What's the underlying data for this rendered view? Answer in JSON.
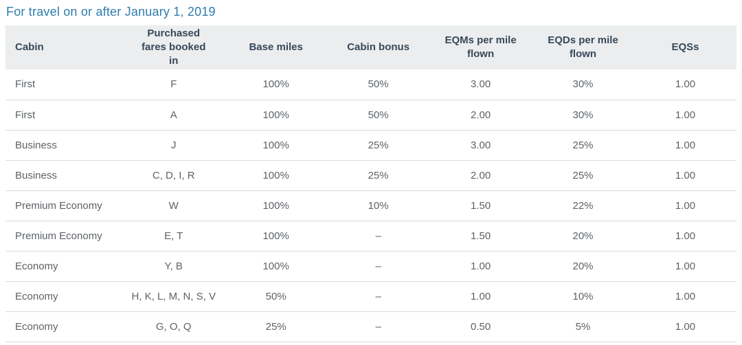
{
  "page": {
    "title": "For travel on or after January 1, 2019"
  },
  "colors": {
    "title_blue": "#2f7dad",
    "header_bg": "#ecedee",
    "header_text": "#36495a",
    "body_text": "#5d6267",
    "row_divider": "#d9dbdc"
  },
  "table": {
    "headers": [
      "Cabin",
      "Purchased fares booked in",
      "Base miles",
      "Cabin bonus",
      "EQMs per mile flown",
      "EQDs per mile flown",
      "EQSs"
    ],
    "rows": [
      [
        "First",
        "F",
        "100%",
        "50%",
        "3.00",
        "30%",
        "1.00"
      ],
      [
        "First",
        "A",
        "100%",
        "50%",
        "2.00",
        "30%",
        "1.00"
      ],
      [
        "Business",
        "J",
        "100%",
        "25%",
        "3.00",
        "25%",
        "1.00"
      ],
      [
        "Business",
        "C, D, I, R",
        "100%",
        "25%",
        "2.00",
        "25%",
        "1.00"
      ],
      [
        "Premium Economy",
        "W",
        "100%",
        "10%",
        "1.50",
        "22%",
        "1.00"
      ],
      [
        "Premium Economy",
        "E, T",
        "100%",
        "–",
        "1.50",
        "20%",
        "1.00"
      ],
      [
        "Economy",
        "Y, B",
        "100%",
        "–",
        "1.00",
        "20%",
        "1.00"
      ],
      [
        "Economy",
        "H, K, L, M, N, S, V",
        "50%",
        "–",
        "1.00",
        "10%",
        "1.00"
      ],
      [
        "Economy",
        "G, O, Q",
        "25%",
        "–",
        "0.50",
        "5%",
        "1.00"
      ]
    ]
  }
}
